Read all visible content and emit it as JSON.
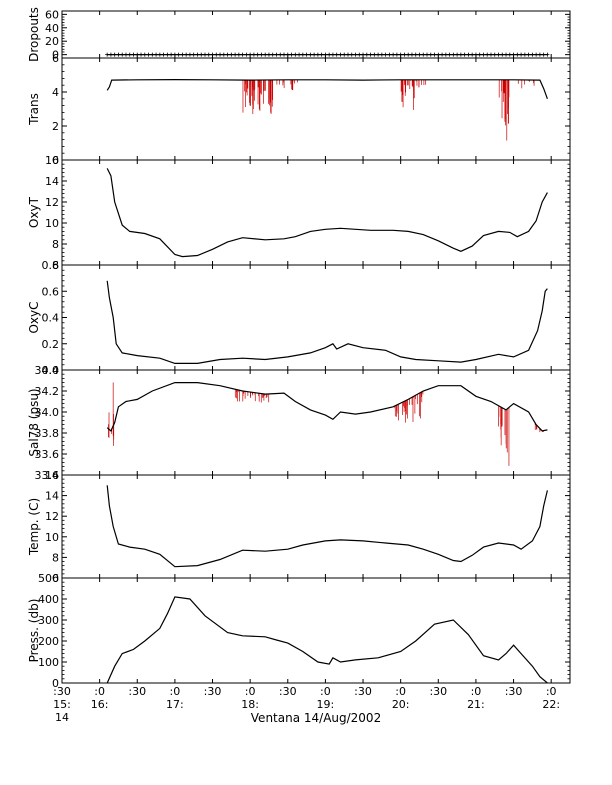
{
  "chart_data": {
    "type": "line",
    "xlabel": "Ventana 14/Aug/2002",
    "x_ticks": [
      {
        "t": 15.5,
        "line1": ":30",
        "line2": "15:",
        "line3": "14"
      },
      {
        "t": 16.0,
        "line1": ":0",
        "line2": "16:"
      },
      {
        "t": 16.5,
        "line1": ":30",
        "line2": ""
      },
      {
        "t": 17.0,
        "line1": ":0",
        "line2": "17:"
      },
      {
        "t": 17.5,
        "line1": ":30",
        "line2": ""
      },
      {
        "t": 18.0,
        "line1": ":0",
        "line2": "18:"
      },
      {
        "t": 18.5,
        "line1": ":30",
        "line2": ""
      },
      {
        "t": 19.0,
        "line1": ":0",
        "line2": "19:"
      },
      {
        "t": 19.5,
        "line1": ":30",
        "line2": ""
      },
      {
        "t": 20.0,
        "line1": ":0",
        "line2": "20:"
      },
      {
        "t": 20.5,
        "line1": ":30",
        "line2": ""
      },
      {
        "t": 21.0,
        "line1": ":0",
        "line2": "21:"
      },
      {
        "t": 21.5,
        "line1": ":30",
        "line2": ""
      },
      {
        "t": 22.0,
        "line1": ":0",
        "line2": "22:"
      }
    ],
    "xlim": [
      15.5,
      22.25
    ],
    "colors": {
      "main": "#000000",
      "raw": "#cc0000"
    },
    "panels": [
      {
        "name": "dropouts",
        "ylabel": "Dropouts",
        "ylim": [
          -5,
          65
        ],
        "yticks": [
          0,
          20,
          40,
          60
        ],
        "ytick_labels": [
          "0",
          "20",
          "40",
          "60"
        ],
        "markers": true,
        "series": [
          [
            16.1,
            0
          ],
          [
            21.95,
            0
          ]
        ]
      },
      {
        "name": "trans",
        "ylabel": "Trans",
        "ylim": [
          0,
          6
        ],
        "yticks": [
          0,
          2,
          4,
          6
        ],
        "ytick_labels": [
          "0",
          "2",
          "4",
          "6"
        ],
        "series": [
          [
            16.1,
            4.1
          ],
          [
            16.13,
            4.3
          ],
          [
            16.16,
            4.7
          ],
          [
            16.5,
            4.72
          ],
          [
            17.0,
            4.73
          ],
          [
            17.5,
            4.72
          ],
          [
            18.0,
            4.7
          ],
          [
            18.5,
            4.72
          ],
          [
            19.0,
            4.72
          ],
          [
            19.5,
            4.7
          ],
          [
            20.0,
            4.72
          ],
          [
            20.5,
            4.72
          ],
          [
            21.0,
            4.72
          ],
          [
            21.5,
            4.72
          ],
          [
            21.85,
            4.7
          ],
          [
            21.9,
            4.2
          ],
          [
            21.95,
            3.6
          ]
        ],
        "spikes": [
          {
            "t0": 17.9,
            "t1": 18.3,
            "n": 45,
            "min": 2.4
          },
          {
            "t0": 18.35,
            "t1": 18.65,
            "n": 12,
            "min": 4.0
          },
          {
            "t0": 20.0,
            "t1": 20.2,
            "n": 25,
            "min": 2.9
          },
          {
            "t0": 20.2,
            "t1": 20.35,
            "n": 8,
            "min": 4.1
          },
          {
            "t0": 21.3,
            "t1": 21.45,
            "n": 20,
            "min": 0.7
          },
          {
            "t0": 21.55,
            "t1": 21.85,
            "n": 10,
            "min": 4.2
          }
        ]
      },
      {
        "name": "oxyt",
        "ylabel": "OxyT",
        "ylim": [
          6,
          16
        ],
        "yticks": [
          6,
          8,
          10,
          12,
          14,
          16
        ],
        "ytick_labels": [
          "6",
          "8",
          "10",
          "12",
          "14",
          "16"
        ],
        "series": [
          [
            16.1,
            15.2
          ],
          [
            16.15,
            14.5
          ],
          [
            16.2,
            12.0
          ],
          [
            16.3,
            9.8
          ],
          [
            16.4,
            9.2
          ],
          [
            16.6,
            9.0
          ],
          [
            16.8,
            8.5
          ],
          [
            17.0,
            7.0
          ],
          [
            17.1,
            6.8
          ],
          [
            17.3,
            6.9
          ],
          [
            17.5,
            7.5
          ],
          [
            17.7,
            8.2
          ],
          [
            17.9,
            8.6
          ],
          [
            18.2,
            8.4
          ],
          [
            18.45,
            8.5
          ],
          [
            18.6,
            8.7
          ],
          [
            18.8,
            9.2
          ],
          [
            19.0,
            9.4
          ],
          [
            19.2,
            9.5
          ],
          [
            19.4,
            9.4
          ],
          [
            19.6,
            9.3
          ],
          [
            19.9,
            9.3
          ],
          [
            20.1,
            9.2
          ],
          [
            20.3,
            8.9
          ],
          [
            20.5,
            8.3
          ],
          [
            20.7,
            7.6
          ],
          [
            20.8,
            7.3
          ],
          [
            20.95,
            7.8
          ],
          [
            21.1,
            8.8
          ],
          [
            21.3,
            9.2
          ],
          [
            21.45,
            9.1
          ],
          [
            21.55,
            8.7
          ],
          [
            21.7,
            9.2
          ],
          [
            21.8,
            10.2
          ],
          [
            21.88,
            12.0
          ],
          [
            21.95,
            12.9
          ]
        ]
      },
      {
        "name": "oxyc",
        "ylabel": "OxyC",
        "ylim": [
          0,
          0.8
        ],
        "yticks": [
          0,
          0.2,
          0.4,
          0.6,
          0.8
        ],
        "ytick_labels": [
          "0.0",
          "0.2",
          "0.4",
          "0.6",
          "0.8"
        ],
        "series": [
          [
            16.1,
            0.68
          ],
          [
            16.13,
            0.55
          ],
          [
            16.18,
            0.4
          ],
          [
            16.22,
            0.2
          ],
          [
            16.3,
            0.13
          ],
          [
            16.5,
            0.11
          ],
          [
            16.8,
            0.09
          ],
          [
            17.0,
            0.05
          ],
          [
            17.3,
            0.05
          ],
          [
            17.6,
            0.08
          ],
          [
            17.9,
            0.09
          ],
          [
            18.2,
            0.08
          ],
          [
            18.5,
            0.1
          ],
          [
            18.8,
            0.13
          ],
          [
            19.0,
            0.17
          ],
          [
            19.1,
            0.2
          ],
          [
            19.15,
            0.16
          ],
          [
            19.3,
            0.2
          ],
          [
            19.5,
            0.17
          ],
          [
            19.8,
            0.15
          ],
          [
            20.0,
            0.1
          ],
          [
            20.2,
            0.08
          ],
          [
            20.5,
            0.07
          ],
          [
            20.8,
            0.06
          ],
          [
            21.0,
            0.08
          ],
          [
            21.3,
            0.12
          ],
          [
            21.5,
            0.1
          ],
          [
            21.7,
            0.15
          ],
          [
            21.82,
            0.3
          ],
          [
            21.88,
            0.45
          ],
          [
            21.92,
            0.6
          ],
          [
            21.95,
            0.62
          ]
        ]
      },
      {
        "name": "sal",
        "ylabel": "Sal78 (psu)",
        "ylim": [
          33.4,
          34.4
        ],
        "yticks": [
          33.4,
          33.6,
          33.8,
          34.0,
          34.2,
          34.4
        ],
        "ytick_labels": [
          "33.4",
          "33.6",
          "33.8",
          "34.0",
          "34.2",
          "34.4"
        ],
        "series": [
          [
            16.1,
            33.85
          ],
          [
            16.15,
            33.82
          ],
          [
            16.2,
            33.9
          ],
          [
            16.25,
            34.05
          ],
          [
            16.35,
            34.1
          ],
          [
            16.5,
            34.12
          ],
          [
            16.7,
            34.2
          ],
          [
            17.0,
            34.28
          ],
          [
            17.3,
            34.28
          ],
          [
            17.6,
            34.25
          ],
          [
            17.9,
            34.2
          ],
          [
            18.2,
            34.17
          ],
          [
            18.45,
            34.18
          ],
          [
            18.6,
            34.1
          ],
          [
            18.8,
            34.02
          ],
          [
            19.0,
            33.97
          ],
          [
            19.1,
            33.93
          ],
          [
            19.2,
            34.0
          ],
          [
            19.4,
            33.98
          ],
          [
            19.6,
            34.0
          ],
          [
            19.9,
            34.05
          ],
          [
            20.1,
            34.12
          ],
          [
            20.3,
            34.2
          ],
          [
            20.5,
            34.25
          ],
          [
            20.8,
            34.25
          ],
          [
            21.0,
            34.15
          ],
          [
            21.2,
            34.1
          ],
          [
            21.4,
            34.02
          ],
          [
            21.5,
            34.08
          ],
          [
            21.7,
            34.0
          ],
          [
            21.8,
            33.88
          ],
          [
            21.88,
            33.82
          ],
          [
            21.95,
            33.83
          ]
        ],
        "spikes": [
          {
            "t0": 16.1,
            "t1": 16.2,
            "n": 6,
            "min": 33.65,
            "max": 34.3
          },
          {
            "t0": 17.8,
            "t1": 18.3,
            "n": 30,
            "min": 34.08
          },
          {
            "t0": 19.9,
            "t1": 20.3,
            "n": 30,
            "min": 33.85
          },
          {
            "t0": 21.3,
            "t1": 21.45,
            "n": 14,
            "min": 33.4
          },
          {
            "t0": 21.75,
            "t1": 21.9,
            "n": 10,
            "min": 33.78
          }
        ]
      },
      {
        "name": "temp",
        "ylabel": "Temp. (C)",
        "ylim": [
          6,
          16
        ],
        "yticks": [
          6,
          8,
          10,
          12,
          14,
          16
        ],
        "ytick_labels": [
          "6",
          "8",
          "10",
          "12",
          "14",
          "16"
        ],
        "series": [
          [
            16.1,
            15.0
          ],
          [
            16.13,
            13.0
          ],
          [
            16.18,
            11.0
          ],
          [
            16.25,
            9.3
          ],
          [
            16.4,
            9.0
          ],
          [
            16.6,
            8.8
          ],
          [
            16.8,
            8.3
          ],
          [
            17.0,
            7.1
          ],
          [
            17.3,
            7.2
          ],
          [
            17.6,
            7.8
          ],
          [
            17.9,
            8.7
          ],
          [
            18.2,
            8.6
          ],
          [
            18.5,
            8.8
          ],
          [
            18.7,
            9.2
          ],
          [
            19.0,
            9.6
          ],
          [
            19.2,
            9.7
          ],
          [
            19.5,
            9.6
          ],
          [
            19.8,
            9.4
          ],
          [
            20.1,
            9.2
          ],
          [
            20.3,
            8.8
          ],
          [
            20.5,
            8.3
          ],
          [
            20.7,
            7.7
          ],
          [
            20.8,
            7.6
          ],
          [
            20.95,
            8.2
          ],
          [
            21.1,
            9.0
          ],
          [
            21.3,
            9.4
          ],
          [
            21.5,
            9.2
          ],
          [
            21.6,
            8.8
          ],
          [
            21.75,
            9.6
          ],
          [
            21.85,
            11.0
          ],
          [
            21.9,
            13.0
          ],
          [
            21.95,
            14.5
          ]
        ]
      },
      {
        "name": "press",
        "ylabel": "Press. (db)",
        "ylim": [
          0,
          500
        ],
        "yticks": [
          0,
          100,
          200,
          300,
          400,
          500
        ],
        "ytick_labels": [
          "0",
          "100",
          "200",
          "300",
          "400",
          "500"
        ],
        "series": [
          [
            16.1,
            0
          ],
          [
            16.2,
            80
          ],
          [
            16.3,
            140
          ],
          [
            16.45,
            160
          ],
          [
            16.6,
            200
          ],
          [
            16.8,
            260
          ],
          [
            16.9,
            330
          ],
          [
            17.0,
            410
          ],
          [
            17.2,
            400
          ],
          [
            17.4,
            320
          ],
          [
            17.7,
            240
          ],
          [
            17.9,
            225
          ],
          [
            18.2,
            220
          ],
          [
            18.35,
            205
          ],
          [
            18.5,
            190
          ],
          [
            18.7,
            150
          ],
          [
            18.9,
            100
          ],
          [
            19.05,
            90
          ],
          [
            19.1,
            120
          ],
          [
            19.2,
            100
          ],
          [
            19.4,
            110
          ],
          [
            19.7,
            120
          ],
          [
            20.0,
            150
          ],
          [
            20.2,
            200
          ],
          [
            20.45,
            280
          ],
          [
            20.7,
            300
          ],
          [
            20.9,
            230
          ],
          [
            21.1,
            130
          ],
          [
            21.3,
            110
          ],
          [
            21.4,
            140
          ],
          [
            21.5,
            180
          ],
          [
            21.6,
            140
          ],
          [
            21.75,
            80
          ],
          [
            21.85,
            30
          ],
          [
            21.95,
            0
          ]
        ]
      }
    ]
  }
}
